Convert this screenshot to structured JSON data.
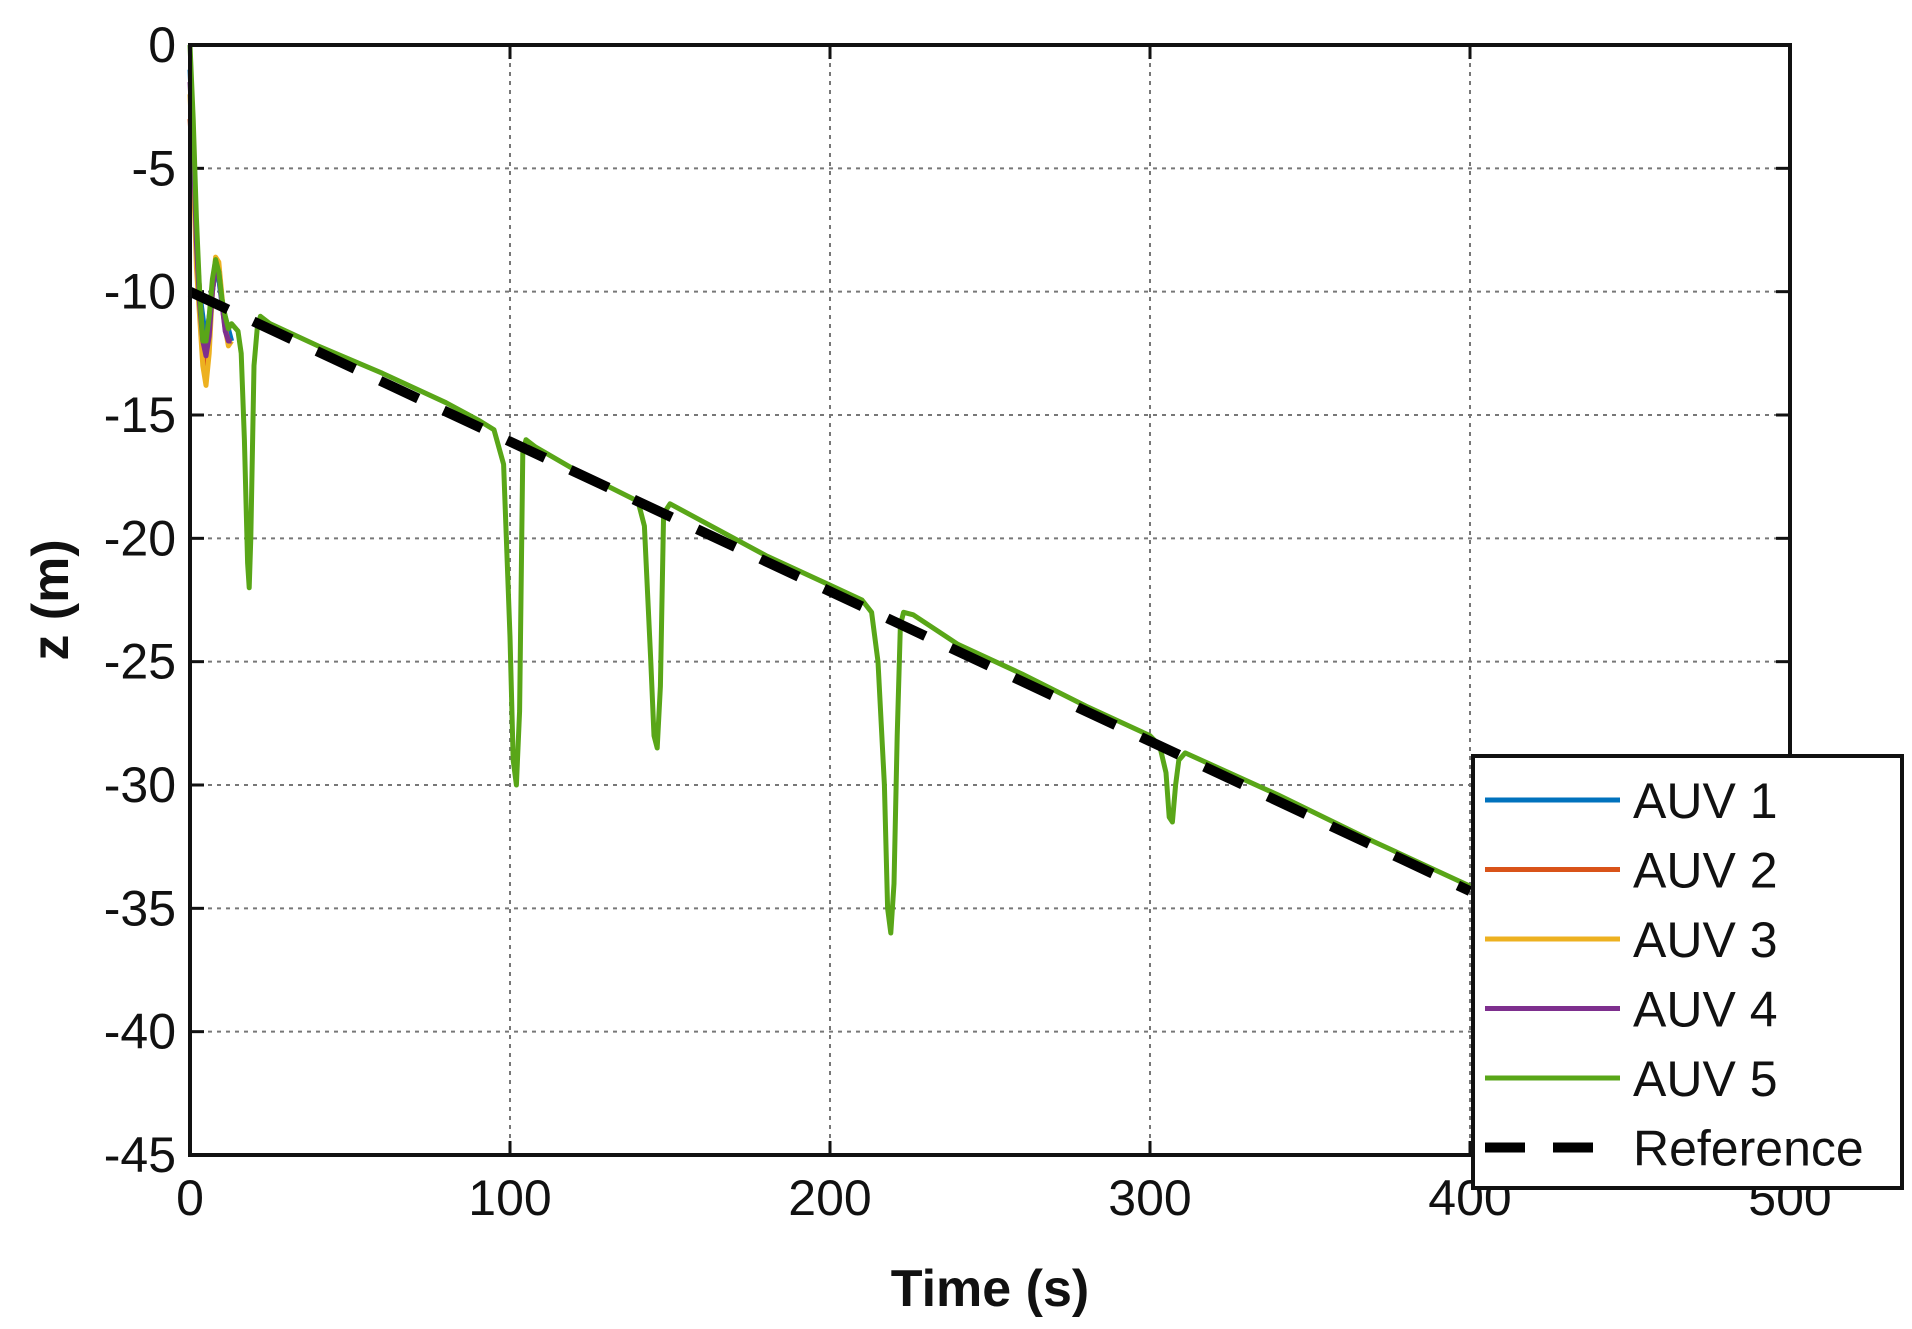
{
  "chart_data": {
    "type": "line",
    "title": "",
    "xlabel": "Time (s)",
    "ylabel": "z (m)",
    "xlim": [
      0,
      500
    ],
    "ylim": [
      -45,
      0
    ],
    "xticks": [
      0,
      100,
      200,
      300,
      400,
      500
    ],
    "yticks": [
      0,
      -5,
      -10,
      -15,
      -20,
      -25,
      -30,
      -35,
      -40,
      -45
    ],
    "grid": true,
    "legend_position": "bottom-right",
    "series": [
      {
        "name": "AUV 1",
        "color": "#0072BD",
        "style": "solid",
        "points": [
          [
            0,
            -1
          ],
          [
            1,
            -4
          ],
          [
            2,
            -8
          ],
          [
            3,
            -10
          ],
          [
            4,
            -11
          ],
          [
            5,
            -12
          ],
          [
            6,
            -11
          ],
          [
            7,
            -10
          ],
          [
            8,
            -9
          ],
          [
            9,
            -9.5
          ],
          [
            10,
            -10.5
          ],
          [
            11,
            -11
          ],
          [
            12,
            -11.5
          ],
          [
            13,
            -12
          ]
        ]
      },
      {
        "name": "AUV 2",
        "color": "#D95319",
        "style": "solid",
        "points": [
          [
            0,
            -3
          ],
          [
            1,
            -5
          ],
          [
            2,
            -8
          ],
          [
            3,
            -10
          ],
          [
            4,
            -12
          ],
          [
            5,
            -13
          ],
          [
            6,
            -12
          ],
          [
            7,
            -10
          ],
          [
            8,
            -9
          ],
          [
            9,
            -9
          ],
          [
            10,
            -10.5
          ],
          [
            11,
            -11.5
          ],
          [
            12,
            -12
          ],
          [
            13,
            -12
          ]
        ]
      },
      {
        "name": "AUV 3",
        "color": "#EDB120",
        "style": "solid",
        "points": [
          [
            0,
            -2
          ],
          [
            1,
            -5
          ],
          [
            2,
            -9
          ],
          [
            3,
            -11
          ],
          [
            4,
            -13
          ],
          [
            5,
            -13.8
          ],
          [
            6,
            -12.5
          ],
          [
            7,
            -10
          ],
          [
            8,
            -8.6
          ],
          [
            9,
            -8.8
          ],
          [
            10,
            -10.2
          ],
          [
            11,
            -11.5
          ],
          [
            12,
            -12.2
          ],
          [
            13,
            -12
          ]
        ]
      },
      {
        "name": "AUV 4",
        "color": "#7E2F8E",
        "style": "solid",
        "points": [
          [
            0,
            -1.5
          ],
          [
            1,
            -4
          ],
          [
            2,
            -8
          ],
          [
            3,
            -10.5
          ],
          [
            4,
            -12
          ],
          [
            5,
            -12.6
          ],
          [
            6,
            -11.8
          ],
          [
            7,
            -10
          ],
          [
            8,
            -9
          ],
          [
            9,
            -9.2
          ],
          [
            10,
            -10.5
          ],
          [
            11,
            -11.6
          ],
          [
            12,
            -12
          ],
          [
            13,
            -12
          ]
        ]
      },
      {
        "name": "AUV 5",
        "color": "#59A618",
        "style": "solid",
        "points": [
          [
            0,
            0
          ],
          [
            1,
            -3
          ],
          [
            2,
            -7
          ],
          [
            3,
            -10
          ],
          [
            4,
            -12
          ],
          [
            5,
            -12
          ],
          [
            6,
            -11
          ],
          [
            7,
            -9.5
          ],
          [
            8,
            -8.7
          ],
          [
            9,
            -9.2
          ],
          [
            10,
            -10.3
          ],
          [
            11,
            -11
          ],
          [
            12,
            -11.5
          ],
          [
            13,
            -11.3
          ],
          [
            15,
            -11.6
          ],
          [
            16,
            -12.5
          ],
          [
            17,
            -16
          ],
          [
            18,
            -21
          ],
          [
            18.5,
            -22
          ],
          [
            19,
            -20
          ],
          [
            20,
            -13
          ],
          [
            21,
            -11.5
          ],
          [
            22,
            -11
          ],
          [
            25,
            -11.3
          ],
          [
            40,
            -12.2
          ],
          [
            60,
            -13.3
          ],
          [
            80,
            -14.5
          ],
          [
            90,
            -15.2
          ],
          [
            95,
            -15.6
          ],
          [
            98,
            -17
          ],
          [
            100,
            -24
          ],
          [
            101,
            -29
          ],
          [
            102,
            -30
          ],
          [
            103,
            -27
          ],
          [
            104,
            -16.5
          ],
          [
            105,
            -16
          ],
          [
            108,
            -16.3
          ],
          [
            120,
            -17.2
          ],
          [
            140,
            -18.5
          ],
          [
            142,
            -19.5
          ],
          [
            144,
            -25
          ],
          [
            145,
            -28
          ],
          [
            146,
            -28.5
          ],
          [
            147,
            -26
          ],
          [
            148,
            -19
          ],
          [
            150,
            -18.6
          ],
          [
            160,
            -19.3
          ],
          [
            180,
            -20.7
          ],
          [
            200,
            -21.9
          ],
          [
            210,
            -22.5
          ],
          [
            213,
            -23
          ],
          [
            215,
            -25
          ],
          [
            217,
            -30
          ],
          [
            218,
            -35
          ],
          [
            219,
            -36
          ],
          [
            220,
            -34
          ],
          [
            221,
            -28
          ],
          [
            222,
            -23.5
          ],
          [
            223,
            -23
          ],
          [
            226,
            -23.1
          ],
          [
            240,
            -24.3
          ],
          [
            260,
            -25.5
          ],
          [
            280,
            -26.8
          ],
          [
            300,
            -28
          ],
          [
            303,
            -28.4
          ],
          [
            305,
            -29.5
          ],
          [
            306,
            -31.3
          ],
          [
            307,
            -31.5
          ],
          [
            308,
            -30
          ],
          [
            309,
            -29
          ],
          [
            311,
            -28.7
          ],
          [
            340,
            -30.4
          ],
          [
            370,
            -32.3
          ],
          [
            400,
            -34.1
          ]
        ]
      },
      {
        "name": "Reference",
        "color": "#000000",
        "style": "dashed",
        "points": [
          [
            0,
            -10
          ],
          [
            400,
            -34.3
          ]
        ]
      }
    ]
  }
}
